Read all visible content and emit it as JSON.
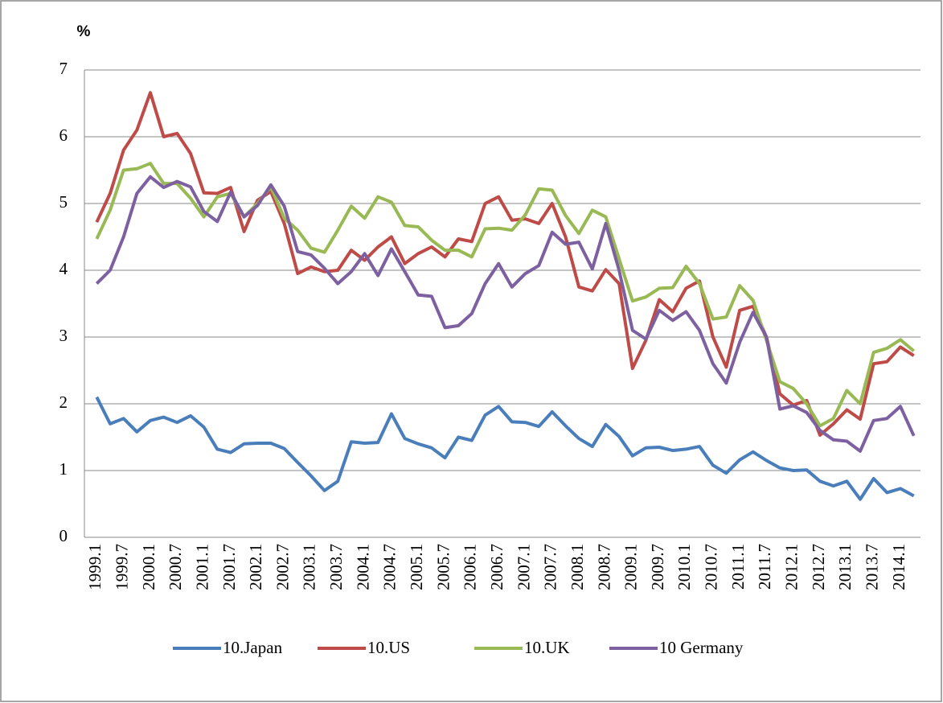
{
  "chart_data": {
    "type": "line",
    "y_label": "%",
    "categories": [
      "1999.1",
      null,
      "1999.7",
      null,
      "2000.1",
      null,
      "2000.7",
      null,
      "2001.1",
      null,
      "2001.7",
      null,
      "2002.1",
      null,
      "2002.7",
      null,
      "2003.1",
      null,
      "2003.7",
      null,
      "2004.1",
      null,
      "2004.7",
      null,
      "2005.1",
      null,
      "2005.7",
      null,
      "2006.1",
      null,
      "2006.7",
      null,
      "2007.1",
      null,
      "2007.7",
      null,
      "2008.1",
      null,
      "2008.7",
      null,
      "2009.1",
      null,
      "2009.7",
      null,
      "2010.1",
      null,
      "2010.7",
      null,
      "2011.1",
      null,
      "2011.7",
      null,
      "2012.1",
      null,
      "2012.7",
      null,
      "2013.1",
      null,
      "2013.7",
      null,
      "2014.1",
      null
    ],
    "series": [
      {
        "name": "10.Japan",
        "color": "#4a7ebb",
        "values": [
          2.1,
          1.7,
          1.78,
          1.58,
          1.75,
          1.8,
          1.72,
          1.82,
          1.65,
          1.32,
          1.27,
          1.4,
          1.41,
          1.41,
          1.33,
          1.12,
          0.92,
          0.7,
          0.84,
          1.43,
          1.41,
          1.42,
          1.85,
          1.48,
          1.4,
          1.34,
          1.19,
          1.5,
          1.45,
          1.83,
          1.96,
          1.73,
          1.72,
          1.66,
          1.88,
          1.67,
          1.48,
          1.36,
          1.69,
          1.51,
          1.22,
          1.34,
          1.35,
          1.3,
          1.32,
          1.36,
          1.08,
          0.96,
          1.16,
          1.28,
          1.15,
          1.04,
          1.0,
          1.01,
          0.84,
          0.77,
          0.84,
          0.57,
          0.88,
          0.67,
          0.73,
          0.62
        ]
      },
      {
        "name": "10.US",
        "color": "#be4b48",
        "values": [
          4.72,
          5.15,
          5.8,
          6.1,
          6.66,
          6.0,
          6.05,
          5.75,
          5.16,
          5.15,
          5.24,
          4.58,
          5.05,
          5.18,
          4.7,
          3.95,
          4.05,
          3.98,
          4.0,
          4.3,
          4.15,
          4.35,
          4.5,
          4.1,
          4.25,
          4.35,
          4.2,
          4.47,
          4.43,
          5.0,
          5.1,
          4.75,
          4.77,
          4.7,
          5.0,
          4.5,
          3.75,
          3.69,
          4.01,
          3.8,
          2.53,
          2.95,
          3.56,
          3.38,
          3.73,
          3.84,
          3.0,
          2.55,
          3.4,
          3.46,
          3.0,
          2.15,
          1.98,
          2.05,
          1.53,
          1.7,
          1.91,
          1.77,
          2.6,
          2.63,
          2.85,
          2.72
        ]
      },
      {
        "name": "10.UK",
        "color": "#98b954",
        "values": [
          4.47,
          4.9,
          5.5,
          5.52,
          5.6,
          5.3,
          5.3,
          5.08,
          4.8,
          5.1,
          5.15,
          4.8,
          5.0,
          5.25,
          4.78,
          4.6,
          4.33,
          4.27,
          4.6,
          4.96,
          4.78,
          5.1,
          5.02,
          4.67,
          4.65,
          4.45,
          4.3,
          4.3,
          4.2,
          4.62,
          4.63,
          4.6,
          4.83,
          5.22,
          5.2,
          4.82,
          4.55,
          4.9,
          4.8,
          4.17,
          3.54,
          3.6,
          3.73,
          3.74,
          4.06,
          3.8,
          3.27,
          3.3,
          3.77,
          3.55,
          2.95,
          2.33,
          2.23,
          2.0,
          1.67,
          1.78,
          2.2,
          2.0,
          2.77,
          2.83,
          2.96,
          2.79
        ]
      },
      {
        "name": "10 Germany",
        "color": "#7d60a0",
        "values": [
          3.8,
          4.0,
          4.5,
          5.15,
          5.4,
          5.24,
          5.33,
          5.25,
          4.88,
          4.73,
          5.17,
          4.8,
          4.97,
          5.28,
          4.96,
          4.28,
          4.23,
          4.03,
          3.8,
          3.98,
          4.25,
          3.92,
          4.32,
          3.98,
          3.63,
          3.61,
          3.14,
          3.17,
          3.35,
          3.8,
          4.1,
          3.75,
          3.95,
          4.07,
          4.57,
          4.39,
          4.42,
          4.02,
          4.7,
          4.0,
          3.1,
          2.97,
          3.4,
          3.25,
          3.38,
          3.1,
          2.6,
          2.31,
          2.92,
          3.37,
          3.0,
          1.92,
          1.97,
          1.87,
          1.6,
          1.46,
          1.44,
          1.29,
          1.75,
          1.78,
          1.96,
          1.52
        ]
      }
    ],
    "ylim": [
      0,
      7
    ],
    "yticks": [
      0,
      1,
      2,
      3,
      4,
      5,
      6,
      7
    ],
    "grid": true,
    "legend": "bottom"
  }
}
